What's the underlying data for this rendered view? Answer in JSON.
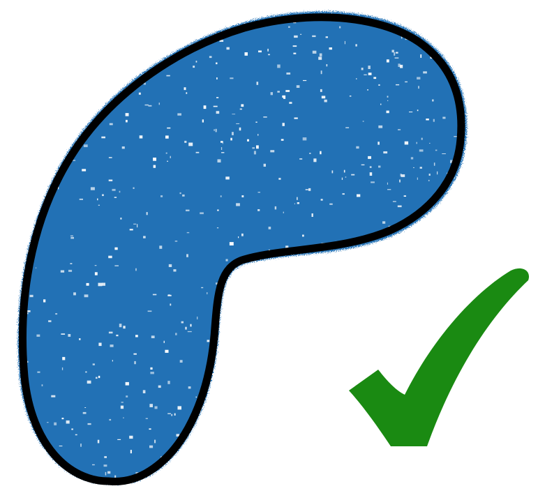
{
  "scene": {
    "background_color": "#ffffff",
    "shape": {
      "icon": "blob-shape",
      "fill_color": "#2171b5",
      "outline_color": "#000000",
      "speckle_color": "#ffffff"
    },
    "check_mark": {
      "icon": "check-mark-icon",
      "fill_color": "#1a8a12"
    }
  }
}
